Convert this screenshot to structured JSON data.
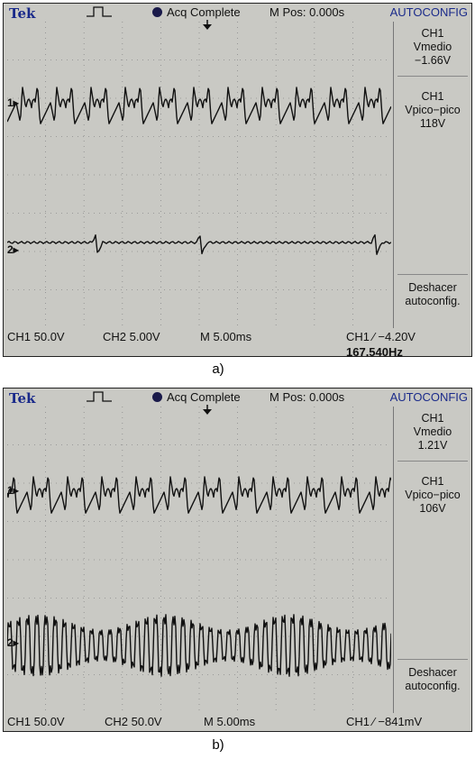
{
  "panels": [
    {
      "brand": "Tek",
      "acq_status": "Acq Complete",
      "mpos": "M Pos: 0.000s",
      "autoconfig": "AUTOCONFIG",
      "ch1_vmedio_ch": "CH1",
      "ch1_vmedio_label": "Vmedio",
      "ch1_vmedio_value": "−1.66V",
      "ch1_vpp_ch": "CH1",
      "ch1_vpp_label": "Vpico−pico",
      "ch1_vpp_value": "118V",
      "undo_line1": "Deshacer",
      "undo_line2": "autoconfig.",
      "ch1_scale": "CH1  50.0V",
      "ch2_scale": "CH2  5.00V",
      "time_scale": "M 5.00ms",
      "trigger": "CH1 ∕ −4.20V",
      "frequency": "167.540Hz",
      "ch1_marker": "1",
      "ch2_marker": "2",
      "caption": "a)"
    },
    {
      "brand": "Tek",
      "acq_status": "Acq Complete",
      "mpos": "M Pos: 0.000s",
      "autoconfig": "AUTOCONFIG",
      "ch1_vmedio_ch": "CH1",
      "ch1_vmedio_label": "Vmedio",
      "ch1_vmedio_value": "1.21V",
      "ch1_vpp_ch": "CH1",
      "ch1_vpp_label": "Vpico−pico",
      "ch1_vpp_value": "106V",
      "undo_line1": "Deshacer",
      "undo_line2": "autoconfig.",
      "ch1_scale": "CH1  50.0V",
      "ch2_scale": "CH2  50.0V",
      "time_scale": "M 5.00ms",
      "trigger": "CH1 ∕  −841mV",
      "frequency": "",
      "ch1_marker": "1",
      "ch2_marker": "2",
      "caption": "b)"
    }
  ]
}
